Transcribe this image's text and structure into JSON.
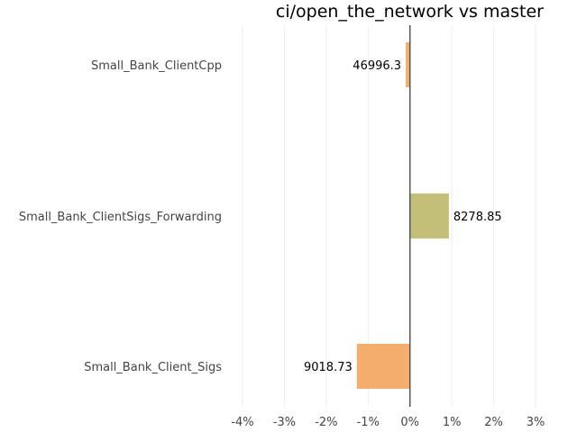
{
  "chart_data": {
    "type": "bar",
    "orientation": "horizontal",
    "title": "ci/open_the_network vs master",
    "xlabel": "",
    "ylabel": "",
    "xlim": [
      -4,
      3
    ],
    "x_ticks": [
      -4,
      -3,
      -2,
      -1,
      0,
      1,
      2,
      3
    ],
    "x_tick_labels": [
      "-4%",
      "-3%",
      "-2%",
      "-1%",
      "0%",
      "1%",
      "2%",
      "3%"
    ],
    "grid": true,
    "legend": "none",
    "categories": [
      "Small_Bank_ClientCpp",
      "Small_Bank_ClientSigs_Forwarding",
      "Small_Bank_Client_Sigs"
    ],
    "values": [
      -0.1,
      0.93,
      -1.27
    ],
    "data_labels": [
      "46996.3",
      "8278.85",
      "9018.73"
    ],
    "colors": [
      "#f5ad6e",
      "#c4bf78",
      "#f5ad6e"
    ]
  }
}
